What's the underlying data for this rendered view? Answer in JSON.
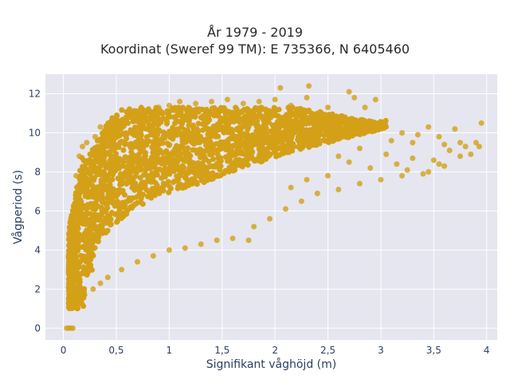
{
  "chart_data": {
    "type": "scatter",
    "title_line1": "År 1979 - 2019",
    "title_line2": "Koordinat (Sweref 99 TM): E 735366, N 6405460",
    "xlabel": "Signifikant våghöjd (m)",
    "ylabel": "Vågperiod (s)",
    "xlim": [
      -0.17,
      4.1
    ],
    "ylim": [
      -0.6,
      13.0
    ],
    "x_ticks": [
      0,
      0.5,
      1,
      1.5,
      2,
      2.5,
      3,
      3.5,
      4
    ],
    "x_tick_labels": [
      "0",
      "0,5",
      "1",
      "1,5",
      "2",
      "2,5",
      "3",
      "3,5",
      "4"
    ],
    "y_ticks": [
      0,
      2,
      4,
      6,
      8,
      10,
      12
    ],
    "y_tick_labels": [
      "0",
      "2",
      "4",
      "6",
      "8",
      "10",
      "12"
    ],
    "grid": true,
    "marker_color": "#d4a017",
    "plot_background": "#e5e6ef",
    "series": [
      {
        "points": [
          [
            0.03,
            0.0
          ],
          [
            0.05,
            0.0
          ],
          [
            0.07,
            0.0
          ],
          [
            0.09,
            0.0
          ],
          [
            0.05,
            1.3
          ],
          [
            0.08,
            1.1
          ],
          [
            0.12,
            1.2
          ],
          [
            0.06,
            1.6
          ],
          [
            0.15,
            1.5
          ],
          [
            0.2,
            1.7
          ],
          [
            0.28,
            2.0
          ],
          [
            0.35,
            2.3
          ],
          [
            0.42,
            2.6
          ],
          [
            0.55,
            3.0
          ],
          [
            0.7,
            3.4
          ],
          [
            0.85,
            3.7
          ],
          [
            1.0,
            4.0
          ],
          [
            1.15,
            4.1
          ],
          [
            1.3,
            4.3
          ],
          [
            1.45,
            4.5
          ],
          [
            1.6,
            4.6
          ],
          [
            1.75,
            4.5
          ],
          [
            1.8,
            5.2
          ],
          [
            1.95,
            5.6
          ],
          [
            2.1,
            6.1
          ],
          [
            2.25,
            6.5
          ],
          [
            2.4,
            6.9
          ],
          [
            2.6,
            7.1
          ],
          [
            2.8,
            7.4
          ],
          [
            3.0,
            7.6
          ],
          [
            3.2,
            7.8
          ],
          [
            3.4,
            7.9
          ],
          [
            0.05,
            3.7
          ],
          [
            0.08,
            5.0
          ],
          [
            0.1,
            6.3
          ],
          [
            0.12,
            7.8
          ],
          [
            0.15,
            8.8
          ],
          [
            0.18,
            9.3
          ],
          [
            0.22,
            9.5
          ],
          [
            0.3,
            9.8
          ],
          [
            0.35,
            10.3
          ],
          [
            0.45,
            10.5
          ],
          [
            0.55,
            10.6
          ],
          [
            0.7,
            10.9
          ],
          [
            0.8,
            11.1
          ],
          [
            0.9,
            11.3
          ],
          [
            1.0,
            11.4
          ],
          [
            1.1,
            11.6
          ],
          [
            1.25,
            11.5
          ],
          [
            1.4,
            11.6
          ],
          [
            1.55,
            11.7
          ],
          [
            1.7,
            11.5
          ],
          [
            1.85,
            11.6
          ],
          [
            2.0,
            11.7
          ],
          [
            2.05,
            12.3
          ],
          [
            2.15,
            11.4
          ],
          [
            2.3,
            11.8
          ],
          [
            2.32,
            12.4
          ],
          [
            2.4,
            11.0
          ],
          [
            2.5,
            11.3
          ],
          [
            2.6,
            10.5
          ],
          [
            2.7,
            12.1
          ],
          [
            2.75,
            11.8
          ],
          [
            2.85,
            11.3
          ],
          [
            2.95,
            11.7
          ],
          [
            3.0,
            10.3
          ],
          [
            3.1,
            9.6
          ],
          [
            3.2,
            10.0
          ],
          [
            3.3,
            9.5
          ],
          [
            3.35,
            9.9
          ],
          [
            3.45,
            10.3
          ],
          [
            3.55,
            9.8
          ],
          [
            3.65,
            9.1
          ],
          [
            3.7,
            10.2
          ],
          [
            3.75,
            9.5
          ],
          [
            3.8,
            9.3
          ],
          [
            3.85,
            8.9
          ],
          [
            3.9,
            9.5
          ],
          [
            3.95,
            10.5
          ],
          [
            3.93,
            9.3
          ],
          [
            3.6,
            8.3
          ],
          [
            3.5,
            8.6
          ],
          [
            3.3,
            8.7
          ],
          [
            3.15,
            8.4
          ],
          [
            2.9,
            8.2
          ],
          [
            2.7,
            8.5
          ],
          [
            2.5,
            7.8
          ],
          [
            2.3,
            7.6
          ],
          [
            2.15,
            7.2
          ],
          [
            2.6,
            8.8
          ],
          [
            2.8,
            9.2
          ],
          [
            3.05,
            8.9
          ],
          [
            3.25,
            8.1
          ],
          [
            3.45,
            8.0
          ],
          [
            3.55,
            8.4
          ],
          [
            3.75,
            8.8
          ],
          [
            3.6,
            9.4
          ]
        ]
      }
    ]
  }
}
